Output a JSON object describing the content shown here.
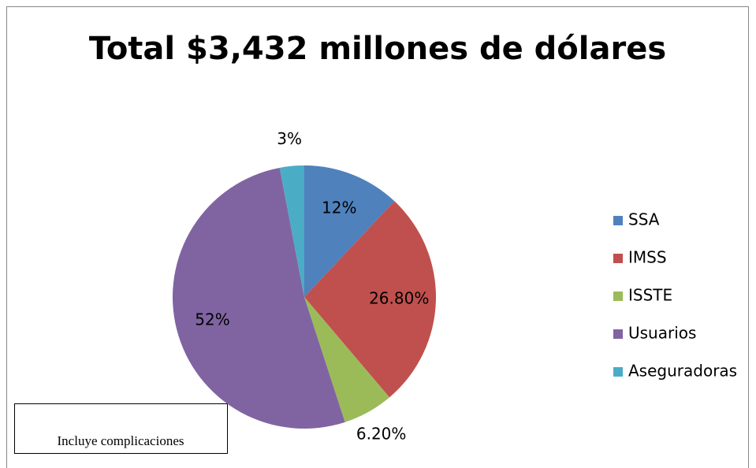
{
  "chart_data": {
    "type": "pie",
    "title": "Total $3,432 millones de dólares",
    "categories": [
      "SSA",
      "IMSS",
      "ISSTE",
      "Usuarios",
      "Aseguradoras"
    ],
    "values": [
      12,
      26.8,
      6.2,
      52,
      3
    ],
    "value_labels": [
      "12%",
      "26.80%",
      "6.20%",
      "52%",
      "3%"
    ],
    "colors": [
      "#4f81bd",
      "#c0504d",
      "#9bbb59",
      "#8064a2",
      "#4bacc6"
    ],
    "legend": "right",
    "annotation": "Incluye complicaciones"
  }
}
